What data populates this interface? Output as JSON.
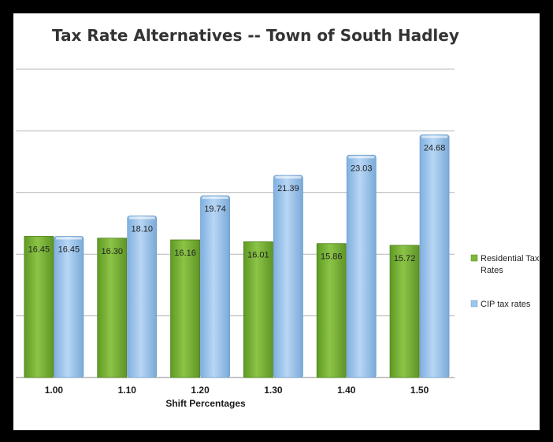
{
  "chart_data": {
    "type": "bar",
    "title": "Tax Rate Alternatives -- Town of South Hadley",
    "xlabel": "Shift Percentages",
    "ylabel": "",
    "categories": [
      "1.00",
      "1.10",
      "1.20",
      "1.30",
      "1.40",
      "1.50"
    ],
    "series": [
      {
        "name": "Residential Tax Rates",
        "values": [
          16.45,
          16.3,
          16.16,
          16.01,
          15.86,
          15.72
        ],
        "color": "#7eb83a"
      },
      {
        "name": "CIP tax rates",
        "values": [
          16.45,
          18.1,
          19.74,
          21.39,
          23.03,
          24.68
        ],
        "color": "#9fc4ea"
      }
    ],
    "ylim": [
      5,
      30
    ],
    "gridlines": true,
    "legend_position": "right"
  },
  "legend": {
    "residential_line1": "Residential Tax",
    "residential_line2": "Rates",
    "cip": "CIP tax rates"
  },
  "colors": {
    "residential": "#7eb83a",
    "cip": "#9fc4ea",
    "frame": "#000000"
  }
}
